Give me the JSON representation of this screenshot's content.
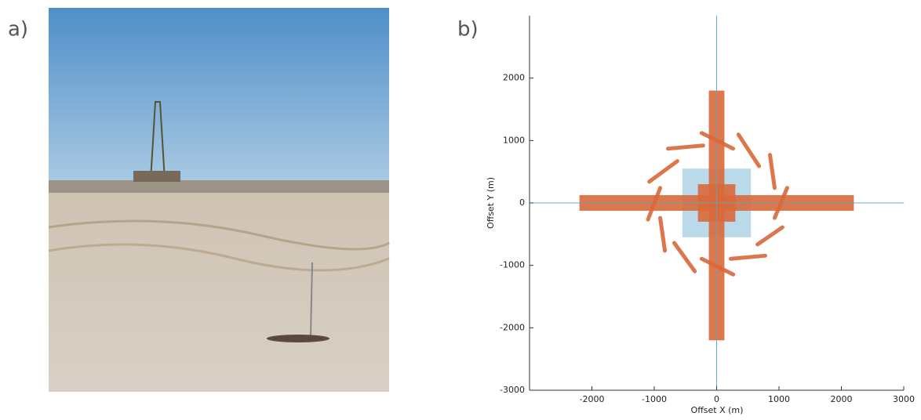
{
  "panel_labels": [
    "a)",
    "b)"
  ],
  "chart_data": {
    "type": "layout",
    "xlabel": "Offset X (m)",
    "ylabel": "Offset Y (m)",
    "xlim": [
      -3000,
      3000
    ],
    "ylim": [
      -3000,
      3000
    ],
    "xticks": [
      -2000,
      -1000,
      0,
      1000,
      2000,
      3000
    ],
    "yticks": [
      -3000,
      -2000,
      -1000,
      0,
      1000,
      2000
    ],
    "areas": [
      {
        "color": "#a9d0e3",
        "x": [
          -550,
          550
        ],
        "y": [
          -550,
          550
        ]
      },
      {
        "color": "#d9693a",
        "x": [
          -2200,
          2200
        ],
        "y": [
          -125,
          125
        ]
      },
      {
        "color": "#d9693a",
        "x": [
          -125,
          125
        ],
        "y": [
          -2200,
          1800
        ]
      },
      {
        "color": "#d9693a",
        "x": [
          -300,
          300
        ],
        "y": [
          -300,
          300
        ]
      }
    ],
    "lines": [
      {
        "color": "#5aa6c8",
        "x": [
          -3000,
          3000
        ],
        "y": [
          0,
          0
        ]
      },
      {
        "color": "#5aa6c8",
        "x": [
          0,
          0
        ],
        "y": [
          -3000,
          3000
        ]
      },
      {
        "color": "#d9693a",
        "x": [
          -780,
          -215
        ],
        "y": [
          870,
          920
        ]
      },
      {
        "color": "#d9693a",
        "x": [
          -240,
          265
        ],
        "y": [
          1120,
          870
        ]
      },
      {
        "color": "#d9693a",
        "x": [
          350,
          680
        ],
        "y": [
          1095,
          590
        ]
      },
      {
        "color": "#d9693a",
        "x": [
          855,
          930
        ],
        "y": [
          770,
          240
        ]
      },
      {
        "color": "#d9693a",
        "x": [
          -1080,
          -630
        ],
        "y": [
          340,
          670
        ]
      },
      {
        "color": "#d9693a",
        "x": [
          -1100,
          -905
        ],
        "y": [
          -265,
          240
        ]
      },
      {
        "color": "#d9693a",
        "x": [
          930,
          1130
        ],
        "y": [
          -240,
          240
        ]
      },
      {
        "color": "#d9693a",
        "x": [
          -905,
          -830
        ],
        "y": [
          -240,
          -765
        ]
      },
      {
        "color": "#d9693a",
        "x": [
          655,
          1055
        ],
        "y": [
          -665,
          -390
        ]
      },
      {
        "color": "#d9693a",
        "x": [
          -680,
          -350
        ],
        "y": [
          -640,
          -1095
        ]
      },
      {
        "color": "#d9693a",
        "x": [
          -240,
          265
        ],
        "y": [
          -895,
          -1145
        ]
      },
      {
        "color": "#d9693a",
        "x": [
          225,
          780
        ],
        "y": [
          -895,
          -845
        ]
      }
    ]
  }
}
